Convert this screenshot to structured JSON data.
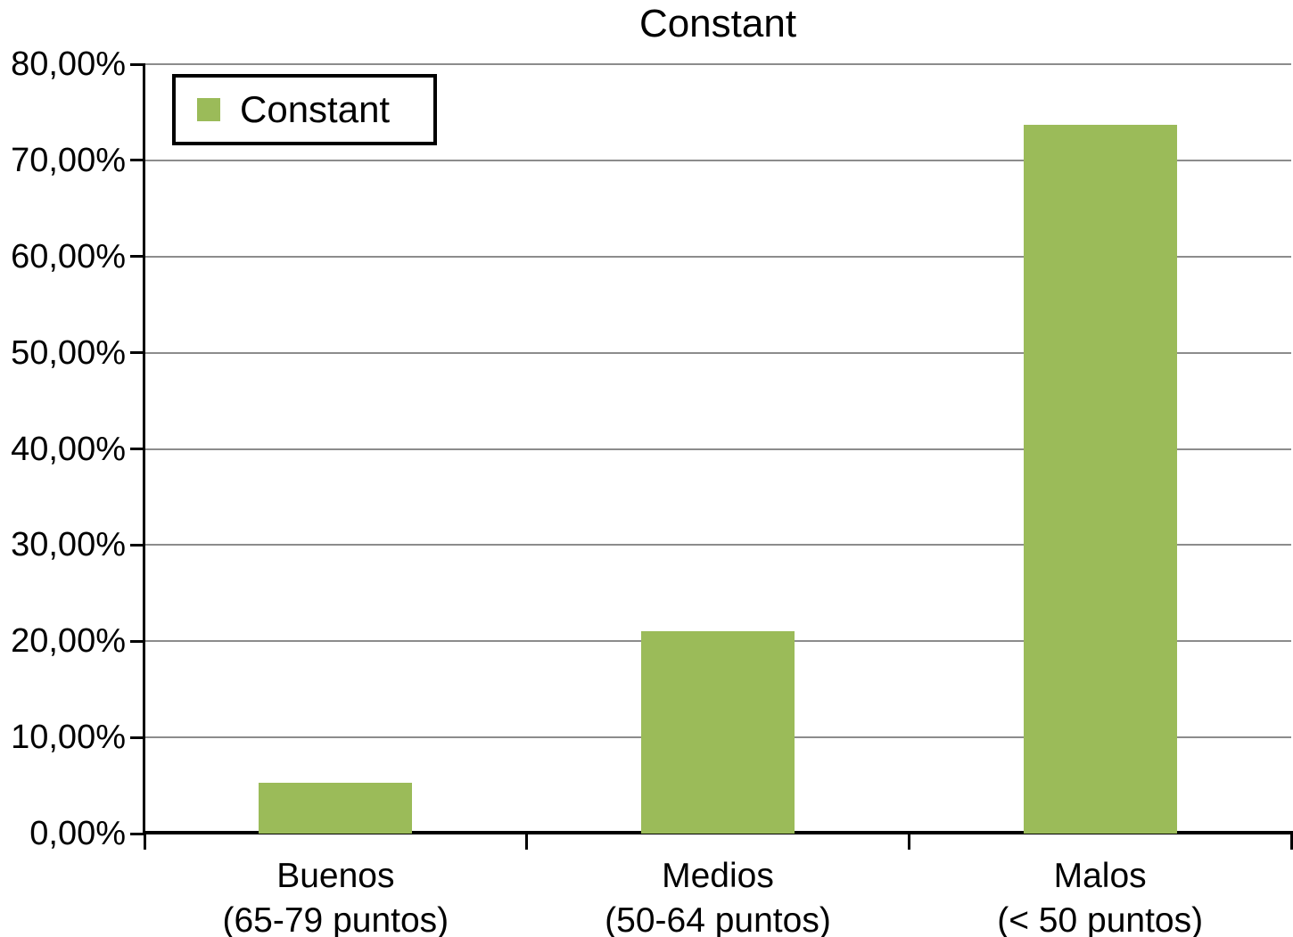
{
  "chart_data": {
    "type": "bar",
    "title": "Constant",
    "categories": [
      "Buenos (65-79 puntos)",
      "Medios (50-64 puntos)",
      "Malos (< 50 puntos)"
    ],
    "category_label_lines": [
      [
        "Buenos",
        "(65-79 puntos)"
      ],
      [
        "Medios",
        "(50-64 puntos)"
      ],
      [
        "Malos",
        "(< 50 puntos)"
      ]
    ],
    "series": [
      {
        "name": "Constant",
        "values": [
          5.26,
          21.05,
          73.68
        ]
      }
    ],
    "xlabel": "",
    "ylabel": "",
    "ylim": [
      0,
      80
    ],
    "ytick_step": 10,
    "ytick_labels": [
      "0,00%",
      "10,00%",
      "20,00%",
      "30,00%",
      "40,00%",
      "50,00%",
      "60,00%",
      "70,00%",
      "80,00%"
    ],
    "grid": true,
    "legend": {
      "position": "top-left",
      "entries": [
        {
          "label": "Constant",
          "swatch_color": "#9bbb59"
        }
      ]
    },
    "colors": {
      "bar": "#9bbb59",
      "gridline": "#8c8c8c",
      "axis": "#000000",
      "text": "#000000",
      "background": "#ffffff"
    }
  }
}
